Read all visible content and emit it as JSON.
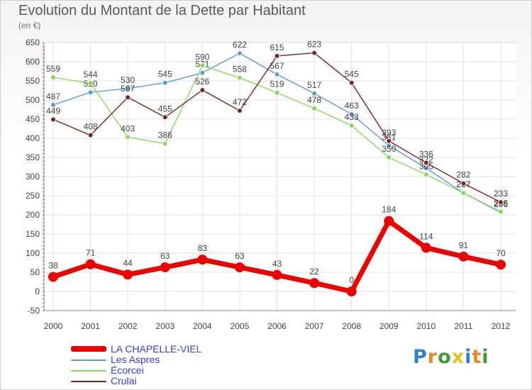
{
  "header": {
    "title": "Evolution du Montant de la Dette par Habitant",
    "subtitle": "(en €)"
  },
  "logo": {
    "text": "Proxiti",
    "colors": [
      "#2f7fd0",
      "#e98a1f",
      "#3b9b3b",
      "#e2c21f"
    ]
  },
  "chart_data": {
    "type": "line",
    "title": "Evolution du Montant de la Dette par Habitant",
    "ylabel": "(en €)",
    "xlabel": "",
    "x": [
      "2000",
      "2001",
      "2002",
      "2003",
      "2004",
      "2005",
      "2006",
      "2007",
      "2008",
      "2009",
      "2010",
      "2011",
      "2012"
    ],
    "ylim": [
      -50,
      650
    ],
    "yticks": [
      -50,
      0,
      50,
      100,
      150,
      200,
      250,
      300,
      350,
      400,
      450,
      500,
      550,
      600,
      650
    ],
    "grid": true,
    "legend_position": "bottom-left",
    "series": [
      {
        "name": "LA CHAPELLE-VIEL",
        "color": "#ee0000",
        "emphasis": true,
        "values": [
          38,
          71,
          44,
          63,
          83,
          63,
          43,
          22,
          0,
          184,
          114,
          91,
          70
        ]
      },
      {
        "name": "Les Aspres",
        "color": "#5c9ad2",
        "values": [
          487,
          520,
          530,
          545,
          571,
          622,
          567,
          517,
          463,
          381,
          322,
          257,
          206
        ]
      },
      {
        "name": "Écorcei",
        "color": "#88d85a",
        "values": [
          559,
          544,
          403,
          386,
          590,
          558,
          519,
          478,
          433,
          350,
          305,
          257,
          208
        ]
      },
      {
        "name": "Crulai",
        "color": "#7a2222",
        "values": [
          449,
          408,
          507,
          455,
          526,
          472,
          615,
          623,
          545,
          393,
          336,
          282,
          233
        ]
      }
    ]
  }
}
